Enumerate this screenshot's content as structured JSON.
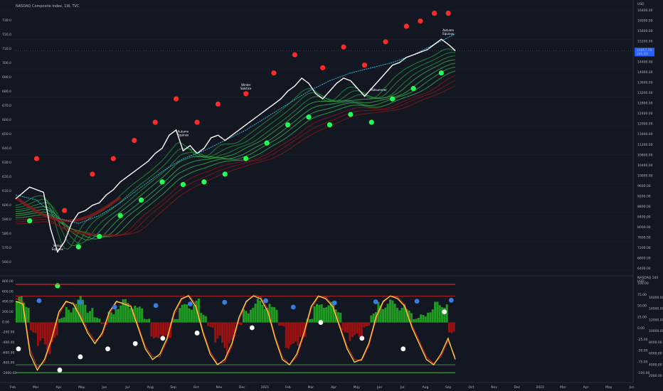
{
  "header": {
    "title": "NASDAQ Composite Index, 1W, TVC"
  },
  "right_axis": {
    "currency": "USD",
    "price_ticks": [
      "16400.00",
      "16000.00",
      "15600.00",
      "15200.00",
      "14800.00",
      "14400.00",
      "14000.00",
      "13600.00",
      "13200.00",
      "12800.00",
      "12400.00",
      "12000.00",
      "11600.00",
      "11200.00",
      "10800.00",
      "10400.00",
      "10000.00",
      "9600.00",
      "9200.00",
      "8800.00",
      "8400.00",
      "8000.00",
      "7600.00",
      "7200.00",
      "6800.00",
      "6400.00"
    ],
    "price_label": "14857.70",
    "price_label_sub": "24h 6d",
    "osc_header": [
      "NASDAQ 100",
      "USD"
    ],
    "osc_right_ticks": [
      "100.00",
      "75.00",
      "50.00",
      "25.00",
      "0.00",
      "-25.00",
      "-50.00",
      "-75.00",
      "-100.00"
    ],
    "vol_ticks": [
      "16000.00",
      "14000.00",
      "12000.00",
      "10000.00",
      "8000.00",
      "6000.00",
      "4000.00",
      "2000.00"
    ]
  },
  "left_axis": {
    "upper_ticks": [
      "730.0",
      "720.0",
      "710.0",
      "700.0",
      "690.0",
      "680.0",
      "670.0",
      "660.0",
      "650.0",
      "640.0",
      "630.0",
      "620.0",
      "610.0",
      "600.0",
      "590.0",
      "580.0",
      "570.0",
      "560.0"
    ],
    "lower_ticks": [
      "800.00",
      "600.00",
      "400.00",
      "200.00",
      "0.00",
      "-200.00",
      "-400.00",
      "-600.00",
      "-800.00",
      "-1000.00"
    ]
  },
  "time_axis": [
    "Feb",
    "Mar",
    "Apr",
    "May",
    "Jun",
    "Jul",
    "Aug",
    "Sep",
    "Oct",
    "Nov",
    "Dec",
    "2021",
    "Feb",
    "Mar",
    "Apr",
    "May",
    "Jun",
    "Jul",
    "Aug",
    "Sep",
    "Oct",
    "Nov",
    "Dec",
    "2022",
    "Mar",
    "Apr",
    "May",
    "Jun"
  ],
  "annotations": [
    {
      "text": "Vernal",
      "text2": "Equinox"
    },
    {
      "text": "Autumn",
      "text2": "Equinox"
    },
    {
      "text": "Winter",
      "text2": "Solstice"
    },
    {
      "text": "Midsummer"
    },
    {
      "text": "Autumn",
      "text2": "Equinox"
    }
  ],
  "colors": {
    "background": "#131722",
    "price": "#ffffff",
    "cloud_up": "#2ea043",
    "cloud_down": "#8b1a1a",
    "dot_red": "#ff2a2a",
    "dot_green": "#22ff55",
    "dot_blue": "#3b7ddd",
    "dot_white": "#ffffff",
    "baseline": "#29b6d6",
    "osc_yellow": "#ffd740",
    "osc_red_line": "#ff2a2a",
    "osc_green_line": "#4caf50",
    "hist_up": "#22aa22",
    "hist_down": "#aa1111"
  },
  "chart_data": [
    {
      "type": "line",
      "title": "NASDAQ Composite Index, 1W, TVC",
      "x_range": [
        "2020-01",
        "2022-06"
      ],
      "ylim": [
        6400,
        16400
      ],
      "series": [
        {
          "values": [
            [
              0,
              9150
            ],
            [
              2,
              9600
            ],
            [
              4,
              9400
            ],
            [
              5,
              8000
            ],
            [
              6,
              7100
            ],
            [
              7,
              7500
            ],
            [
              8,
              8200
            ],
            [
              9,
              8600
            ],
            [
              10,
              8700
            ],
            [
              11,
              8900
            ],
            [
              12,
              9000
            ],
            [
              13,
              9300
            ],
            [
              14,
              9500
            ],
            [
              15,
              9800
            ],
            [
              16,
              10000
            ],
            [
              17,
              10200
            ],
            [
              18,
              10400
            ],
            [
              19,
              10600
            ],
            [
              20,
              10900
            ],
            [
              21,
              11100
            ],
            [
              22,
              11600
            ],
            [
              23,
              11800
            ],
            [
              24,
              11000
            ],
            [
              25,
              11200
            ],
            [
              26,
              10900
            ],
            [
              27,
              11100
            ],
            [
              28,
              11500
            ],
            [
              29,
              11600
            ],
            [
              30,
              11400
            ],
            [
              31,
              11600
            ],
            [
              32,
              11800
            ],
            [
              33,
              12000
            ],
            [
              34,
              12200
            ],
            [
              35,
              12400
            ],
            [
              36,
              12600
            ],
            [
              37,
              12800
            ],
            [
              38,
              13000
            ],
            [
              39,
              13300
            ],
            [
              40,
              13500
            ],
            [
              41,
              13800
            ],
            [
              42,
              13600
            ],
            [
              43,
              13200
            ],
            [
              44,
              13000
            ],
            [
              45,
              13300
            ],
            [
              46,
              13600
            ],
            [
              47,
              13800
            ],
            [
              48,
              13700
            ],
            [
              49,
              13400
            ],
            [
              50,
              13100
            ],
            [
              51,
              13400
            ],
            [
              52,
              13700
            ],
            [
              53,
              14000
            ],
            [
              54,
              14300
            ],
            [
              55,
              14400
            ],
            [
              56,
              14600
            ],
            [
              57,
              14700
            ],
            [
              58,
              14800
            ],
            [
              59,
              14900
            ],
            [
              60,
              15100
            ],
            [
              61,
              15300
            ],
            [
              62,
              15100
            ],
            [
              63,
              14860
            ]
          ]
        },
        {
          "values": [
            [
              0,
              9300
            ],
            [
              3,
              9100
            ],
            [
              6,
              8400
            ],
            [
              9,
              8200
            ],
            [
              12,
              8500
            ],
            [
              15,
              9000
            ],
            [
              18,
              9600
            ],
            [
              21,
              10200
            ],
            [
              24,
              10700
            ],
            [
              27,
              11000
            ],
            [
              30,
              11400
            ],
            [
              33,
              11800
            ],
            [
              36,
              12300
            ],
            [
              39,
              12800
            ],
            [
              42,
              13300
            ],
            [
              45,
              13700
            ],
            [
              48,
              14000
            ],
            [
              51,
              14200
            ],
            [
              54,
              14400
            ],
            [
              57,
              14700
            ],
            [
              60,
              15100
            ],
            [
              63,
              15500
            ]
          ]
        }
      ],
      "markers_red_x": [
        3,
        7,
        11,
        14,
        17,
        20,
        23,
        26,
        29,
        33,
        37,
        40,
        44,
        47,
        50,
        53,
        56,
        58,
        60,
        62
      ],
      "markers_green_x": [
        2,
        6,
        9,
        12,
        15,
        18,
        21,
        24,
        27,
        30,
        33,
        36,
        39,
        42,
        45,
        48,
        51,
        54,
        57,
        61
      ]
    },
    {
      "type": "line",
      "title": "",
      "ylim": [
        -1000,
        800
      ],
      "series": [
        {
          "values": [
            400,
            350,
            -600,
            -900,
            -700,
            -300,
            200,
            400,
            350,
            100,
            -200,
            -400,
            -200,
            200,
            400,
            350,
            300,
            -100,
            -500,
            -700,
            -600,
            -300,
            200,
            450,
            500,
            300,
            -200,
            -600,
            -800,
            -700,
            -400,
            100,
            400,
            500,
            450,
            200,
            -300,
            -700,
            -800,
            -600,
            -200,
            300,
            500,
            450,
            300,
            -100,
            -500,
            -750,
            -700,
            -400,
            100,
            400,
            500,
            450,
            300,
            -100,
            -400,
            -700,
            -800,
            -600,
            -300,
            -700
          ]
        },
        {
          "values": [
            450,
            400,
            -500,
            -850,
            -750,
            -350,
            150,
            380,
            380,
            150,
            -150,
            -350,
            -250,
            150,
            380,
            380,
            320,
            -50,
            -450,
            -650,
            -650,
            -350,
            150,
            420,
            520,
            350,
            -150,
            -550,
            -780,
            -750,
            -450,
            50,
            380,
            520,
            480,
            250,
            -250,
            -650,
            -800,
            -650,
            -250,
            250,
            480,
            480,
            330,
            -50,
            -450,
            -700,
            -720,
            -450,
            50,
            380,
            500,
            480,
            330,
            -50,
            -350,
            -650,
            -780,
            -650,
            -350,
            -650
          ]
        }
      ],
      "histogram": [
        500,
        450,
        -200,
        -500,
        -600,
        -400,
        100,
        300,
        450,
        500,
        300,
        100,
        -50,
        200,
        400,
        450,
        420,
        300,
        100,
        -300,
        -400,
        -300,
        100,
        350,
        400,
        450,
        200,
        -100,
        -400,
        -600,
        -400,
        -50,
        250,
        400,
        450,
        420,
        300,
        -100,
        -500,
        -600,
        -300,
        100,
        350,
        450,
        400,
        300,
        -200,
        -400,
        -300,
        -100,
        200,
        400,
        450,
        420,
        380,
        250,
        100,
        150,
        300,
        400,
        450,
        -200
      ],
      "markers_blue": [
        410,
        380,
        290,
        320,
        350,
        380,
        410,
        290,
        370,
        390,
        400,
        420
      ],
      "markers_white": [
        -500,
        -900,
        -650,
        -500,
        -400,
        -300,
        -200,
        -100,
        0,
        -300,
        -500,
        200
      ]
    }
  ]
}
